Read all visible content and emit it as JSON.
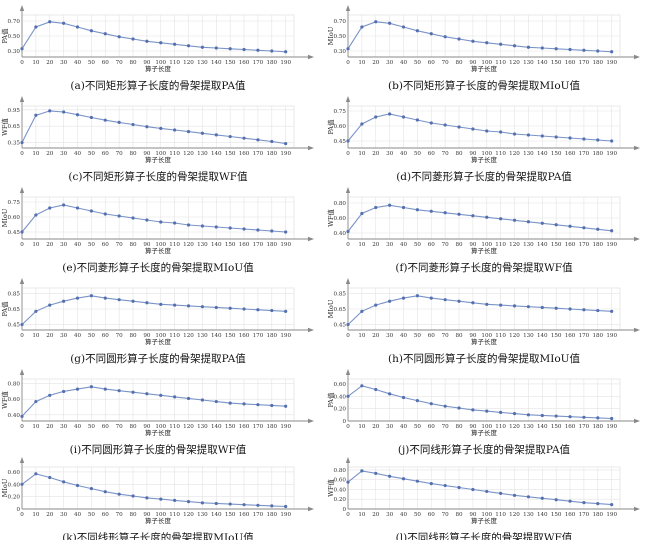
{
  "chart_data": [
    {
      "type": "line",
      "caption": "(a)不同矩形算子长度的骨架提取PA值",
      "xlabel": "算子长度",
      "ylabel": "PA值",
      "x": [
        0,
        10,
        20,
        30,
        40,
        50,
        60,
        70,
        80,
        90,
        100,
        110,
        120,
        130,
        140,
        150,
        160,
        170,
        180,
        190
      ],
      "x_ticks": [
        "0",
        "10",
        "20",
        "30",
        "40",
        "50",
        "60",
        "70",
        "80",
        "90",
        "100",
        "110",
        "120",
        "130",
        "140",
        "150",
        "160",
        "170",
        "180",
        "190"
      ],
      "y_ticks": [
        "0.30",
        "0.50",
        "0.70"
      ],
      "y_tick_values": [
        0.3,
        0.5,
        0.7
      ],
      "ylim": [
        0.22,
        0.78
      ],
      "values": [
        0.33,
        0.62,
        0.69,
        0.67,
        0.62,
        0.57,
        0.53,
        0.49,
        0.46,
        0.43,
        0.41,
        0.39,
        0.37,
        0.35,
        0.34,
        0.33,
        0.32,
        0.31,
        0.3,
        0.29
      ]
    },
    {
      "type": "line",
      "caption": "(b)不同矩形算子长度的骨架提取MIoU值",
      "xlabel": "算子长度",
      "ylabel": "MIoU",
      "x": [
        0,
        10,
        20,
        30,
        40,
        50,
        60,
        70,
        80,
        90,
        100,
        110,
        120,
        130,
        140,
        150,
        160,
        170,
        180,
        190
      ],
      "x_ticks": [
        "0",
        "10",
        "20",
        "30",
        "40",
        "50",
        "60",
        "70",
        "80",
        "90",
        "100",
        "110",
        "120",
        "130",
        "140",
        "150",
        "160",
        "170",
        "180",
        "190"
      ],
      "y_ticks": [
        "0.30",
        "0.50",
        "0.70"
      ],
      "y_tick_values": [
        0.3,
        0.5,
        0.7
      ],
      "ylim": [
        0.22,
        0.78
      ],
      "values": [
        0.33,
        0.62,
        0.69,
        0.67,
        0.62,
        0.57,
        0.53,
        0.49,
        0.46,
        0.43,
        0.41,
        0.39,
        0.37,
        0.35,
        0.34,
        0.33,
        0.32,
        0.31,
        0.3,
        0.29
      ]
    },
    {
      "type": "line",
      "caption": "(c)不同矩形算子长度的骨架提取WF值",
      "xlabel": "算子长度",
      "ylabel": "WF值",
      "x": [
        0,
        10,
        20,
        30,
        40,
        50,
        60,
        70,
        80,
        90,
        100,
        110,
        120,
        130,
        140,
        150,
        160,
        170,
        180,
        190
      ],
      "x_ticks": [
        "0",
        "10",
        "20",
        "30",
        "40",
        "50",
        "60",
        "70",
        "80",
        "90",
        "100",
        "110",
        "120",
        "130",
        "140",
        "150",
        "160",
        "170",
        "180",
        "190"
      ],
      "y_ticks": [
        "0.35",
        "0.65",
        "0.95"
      ],
      "y_tick_values": [
        0.35,
        0.65,
        0.95
      ],
      "ylim": [
        0.25,
        1.02
      ],
      "values": [
        0.35,
        0.85,
        0.93,
        0.91,
        0.86,
        0.81,
        0.76,
        0.72,
        0.68,
        0.64,
        0.61,
        0.58,
        0.55,
        0.52,
        0.49,
        0.46,
        0.43,
        0.4,
        0.37,
        0.33
      ]
    },
    {
      "type": "line",
      "caption": "(d)不同菱形算子长度的骨架提取PA值",
      "xlabel": "算子长度",
      "ylabel": "PA值",
      "x": [
        0,
        10,
        20,
        30,
        40,
        50,
        60,
        70,
        80,
        90,
        100,
        110,
        120,
        130,
        140,
        150,
        160,
        170,
        180,
        190
      ],
      "x_ticks": [
        "0",
        "10",
        "20",
        "30",
        "40",
        "50",
        "60",
        "70",
        "80",
        "90",
        "100",
        "110",
        "120",
        "130",
        "140",
        "150",
        "160",
        "170",
        "180",
        "190"
      ],
      "y_ticks": [
        "0.45",
        "0.60",
        "0.75"
      ],
      "y_tick_values": [
        0.45,
        0.6,
        0.75
      ],
      "ylim": [
        0.38,
        0.8
      ],
      "values": [
        0.45,
        0.62,
        0.69,
        0.72,
        0.69,
        0.66,
        0.63,
        0.61,
        0.59,
        0.57,
        0.55,
        0.54,
        0.52,
        0.51,
        0.5,
        0.49,
        0.48,
        0.47,
        0.46,
        0.45
      ]
    },
    {
      "type": "line",
      "caption": "(e)不同菱形算子长度的骨架提取MIoU值",
      "xlabel": "算子长度",
      "ylabel": "MIoU",
      "x": [
        0,
        10,
        20,
        30,
        40,
        50,
        60,
        70,
        80,
        90,
        100,
        110,
        120,
        130,
        140,
        150,
        160,
        170,
        180,
        190
      ],
      "x_ticks": [
        "0",
        "10",
        "20",
        "30",
        "40",
        "50",
        "60",
        "70",
        "80",
        "90",
        "100",
        "110",
        "120",
        "130",
        "140",
        "150",
        "160",
        "170",
        "180",
        "190"
      ],
      "y_ticks": [
        "0.45",
        "0.60",
        "0.75"
      ],
      "y_tick_values": [
        0.45,
        0.6,
        0.75
      ],
      "ylim": [
        0.38,
        0.8
      ],
      "values": [
        0.45,
        0.62,
        0.69,
        0.72,
        0.69,
        0.66,
        0.63,
        0.61,
        0.59,
        0.57,
        0.55,
        0.54,
        0.52,
        0.51,
        0.5,
        0.49,
        0.48,
        0.47,
        0.46,
        0.45
      ]
    },
    {
      "type": "line",
      "caption": "(f)不同菱形算子长度的骨架提取WF值",
      "xlabel": "算子长度",
      "ylabel": "WF值",
      "x": [
        0,
        10,
        20,
        30,
        40,
        50,
        60,
        70,
        80,
        90,
        100,
        110,
        120,
        130,
        140,
        150,
        160,
        170,
        180,
        190
      ],
      "x_ticks": [
        "0",
        "10",
        "20",
        "30",
        "40",
        "50",
        "60",
        "70",
        "80",
        "90",
        "100",
        "110",
        "120",
        "130",
        "140",
        "150",
        "160",
        "170",
        "180",
        "190"
      ],
      "y_ticks": [
        "0.40",
        "0.60",
        "0.80"
      ],
      "y_tick_values": [
        0.4,
        0.6,
        0.8
      ],
      "ylim": [
        0.32,
        0.88
      ],
      "values": [
        0.42,
        0.66,
        0.74,
        0.77,
        0.74,
        0.71,
        0.69,
        0.67,
        0.65,
        0.63,
        0.61,
        0.59,
        0.57,
        0.55,
        0.53,
        0.51,
        0.49,
        0.47,
        0.45,
        0.43
      ]
    },
    {
      "type": "line",
      "caption": "(g)不同圆形算子长度的骨架提取PA值",
      "xlabel": "算子长度",
      "ylabel": "PA值",
      "x": [
        0,
        10,
        20,
        30,
        40,
        50,
        60,
        70,
        80,
        90,
        100,
        110,
        120,
        130,
        140,
        150,
        160,
        170,
        180,
        190
      ],
      "x_ticks": [
        "0",
        "10",
        "20",
        "30",
        "40",
        "50",
        "60",
        "70",
        "80",
        "90",
        "100",
        "110",
        "120",
        "130",
        "140",
        "150",
        "160",
        "170",
        "180",
        "190"
      ],
      "y_ticks": [
        "0.45",
        "0.65",
        "0.85"
      ],
      "y_tick_values": [
        0.45,
        0.65,
        0.85
      ],
      "ylim": [
        0.38,
        0.92
      ],
      "values": [
        0.45,
        0.62,
        0.7,
        0.75,
        0.79,
        0.82,
        0.79,
        0.77,
        0.75,
        0.73,
        0.71,
        0.7,
        0.69,
        0.68,
        0.67,
        0.66,
        0.65,
        0.64,
        0.63,
        0.62
      ]
    },
    {
      "type": "line",
      "caption": "(h)不同圆形算子长度的骨架提取MIoU值",
      "xlabel": "算子长度",
      "ylabel": "MIoU",
      "x": [
        0,
        10,
        20,
        30,
        40,
        50,
        60,
        70,
        80,
        90,
        100,
        110,
        120,
        130,
        140,
        150,
        160,
        170,
        180,
        190
      ],
      "x_ticks": [
        "0",
        "10",
        "20",
        "30",
        "40",
        "50",
        "60",
        "70",
        "80",
        "90",
        "100",
        "110",
        "120",
        "130",
        "140",
        "150",
        "160",
        "170",
        "180",
        "190"
      ],
      "y_ticks": [
        "0.45",
        "0.65",
        "0.85"
      ],
      "y_tick_values": [
        0.45,
        0.65,
        0.85
      ],
      "ylim": [
        0.38,
        0.92
      ],
      "values": [
        0.45,
        0.62,
        0.7,
        0.75,
        0.79,
        0.82,
        0.79,
        0.77,
        0.75,
        0.73,
        0.71,
        0.7,
        0.69,
        0.68,
        0.67,
        0.66,
        0.65,
        0.64,
        0.63,
        0.62
      ]
    },
    {
      "type": "line",
      "caption": "(i)不同圆形算子长度的骨架提取WF值",
      "xlabel": "算子长度",
      "ylabel": "WF值",
      "x": [
        0,
        10,
        20,
        30,
        40,
        50,
        60,
        70,
        80,
        90,
        100,
        110,
        120,
        130,
        140,
        150,
        160,
        170,
        180,
        190
      ],
      "x_ticks": [
        "0",
        "10",
        "20",
        "30",
        "40",
        "50",
        "60",
        "70",
        "80",
        "90",
        "100",
        "110",
        "120",
        "130",
        "140",
        "150",
        "160",
        "170",
        "180",
        "190"
      ],
      "y_ticks": [
        "0.40",
        "0.60",
        "0.80"
      ],
      "y_tick_values": [
        0.4,
        0.6,
        0.8
      ],
      "ylim": [
        0.32,
        0.86
      ],
      "values": [
        0.38,
        0.57,
        0.65,
        0.7,
        0.73,
        0.76,
        0.73,
        0.71,
        0.69,
        0.67,
        0.65,
        0.63,
        0.61,
        0.59,
        0.57,
        0.55,
        0.54,
        0.53,
        0.52,
        0.51
      ]
    },
    {
      "type": "line",
      "caption": "(j)不同线形算子长度的骨架提取PA值",
      "xlabel": "算子长度",
      "ylabel": "PA值",
      "x": [
        0,
        10,
        20,
        30,
        40,
        50,
        60,
        70,
        80,
        90,
        100,
        110,
        120,
        130,
        140,
        150,
        160,
        170,
        180,
        190
      ],
      "x_ticks": [
        "0",
        "10",
        "20",
        "30",
        "40",
        "50",
        "60",
        "70",
        "80",
        "90",
        "100",
        "110",
        "120",
        "130",
        "140",
        "150",
        "160",
        "170",
        "180",
        "190"
      ],
      "y_ticks": [
        "0",
        "0.20",
        "0.40",
        "0.60"
      ],
      "y_tick_values": [
        0,
        0.2,
        0.4,
        0.6
      ],
      "ylim": [
        0,
        0.68
      ],
      "values": [
        0.4,
        0.57,
        0.51,
        0.44,
        0.38,
        0.33,
        0.28,
        0.24,
        0.21,
        0.18,
        0.16,
        0.14,
        0.12,
        0.1,
        0.09,
        0.08,
        0.07,
        0.06,
        0.05,
        0.04
      ]
    },
    {
      "type": "line",
      "caption": "(k)不同线形算子长度的骨架提取MIoU值",
      "xlabel": "算子长度",
      "ylabel": "MIoU",
      "x": [
        0,
        10,
        20,
        30,
        40,
        50,
        60,
        70,
        80,
        90,
        100,
        110,
        120,
        130,
        140,
        150,
        160,
        170,
        180,
        190
      ],
      "x_ticks": [
        "0",
        "10",
        "20",
        "30",
        "40",
        "50",
        "60",
        "70",
        "80",
        "90",
        "100",
        "110",
        "120",
        "130",
        "140",
        "150",
        "160",
        "170",
        "180",
        "190"
      ],
      "y_ticks": [
        "0",
        "0.20",
        "0.40",
        "0.60"
      ],
      "y_tick_values": [
        0,
        0.2,
        0.4,
        0.6
      ],
      "ylim": [
        0,
        0.68
      ],
      "values": [
        0.4,
        0.57,
        0.51,
        0.44,
        0.38,
        0.33,
        0.28,
        0.24,
        0.21,
        0.18,
        0.16,
        0.14,
        0.12,
        0.1,
        0.09,
        0.08,
        0.07,
        0.06,
        0.05,
        0.04
      ]
    },
    {
      "type": "line",
      "caption": "(l)不同线形算子长度的骨架提取WF值",
      "xlabel": "算子长度",
      "ylabel": "WF值",
      "x": [
        0,
        10,
        20,
        30,
        40,
        50,
        60,
        70,
        80,
        90,
        100,
        110,
        120,
        130,
        140,
        150,
        160,
        170,
        180,
        190
      ],
      "x_ticks": [
        "0",
        "10",
        "20",
        "30",
        "40",
        "50",
        "60",
        "70",
        "80",
        "90",
        "100",
        "110",
        "120",
        "130",
        "140",
        "150",
        "160",
        "170",
        "180",
        "190"
      ],
      "y_ticks": [
        "0",
        "0.20",
        "0.40",
        "0.60",
        "0.80"
      ],
      "y_tick_values": [
        0,
        0.2,
        0.4,
        0.6,
        0.8
      ],
      "ylim": [
        0,
        0.86
      ],
      "values": [
        0.55,
        0.78,
        0.73,
        0.67,
        0.62,
        0.57,
        0.52,
        0.48,
        0.44,
        0.4,
        0.36,
        0.32,
        0.28,
        0.25,
        0.22,
        0.19,
        0.16,
        0.13,
        0.11,
        0.09
      ]
    }
  ],
  "style": {
    "line_color": "#7a93c7",
    "marker_color": "#5470b0",
    "grid_color": "#e3e3e3",
    "axis_color": "#8a8a8a"
  }
}
